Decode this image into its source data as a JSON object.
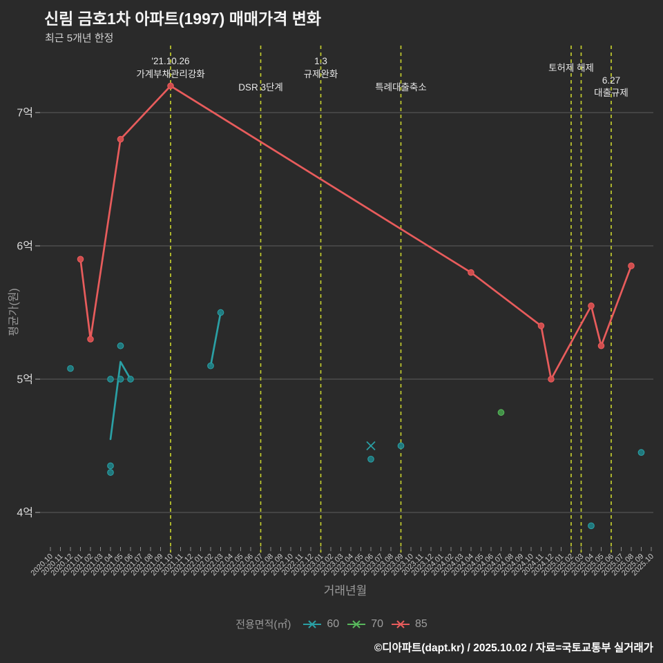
{
  "header": {
    "title": "신림 금호1차 아파트(1997) 매매가격 변화",
    "subtitle": "최근 5개년 한정"
  },
  "footer": {
    "credit": "©디아파트(dapt.kr) / 2025.10.02 / 자료=국토교통부 실거래가"
  },
  "legend": {
    "title": "전용면적(㎡)",
    "items": [
      {
        "label": "60",
        "color": "#2aa0a5"
      },
      {
        "label": "70",
        "color": "#58b85c"
      },
      {
        "label": "85",
        "color": "#e85c5c"
      }
    ]
  },
  "chart_data": {
    "type": "line+scatter",
    "title": "신림 금호1차 아파트(1997) 매매가격 변화",
    "subtitle": "최근 5개년 한정",
    "xlabel": "거래년월",
    "ylabel": "평균가(원)",
    "unit": "억원",
    "grid": true,
    "ylim": [
      3.75,
      7.45
    ],
    "y_ticks": [
      {
        "label": "4억",
        "value": 4
      },
      {
        "label": "5억",
        "value": 5
      },
      {
        "label": "6억",
        "value": 6
      },
      {
        "label": "7억",
        "value": 7
      }
    ],
    "x_categories": [
      "2020.10",
      "2020.11",
      "2020.12",
      "2021.01",
      "2021.02",
      "2021.03",
      "2021.04",
      "2021.05",
      "2021.06",
      "2021.07",
      "2021.08",
      "2021.09",
      "2021.10",
      "2021.11",
      "2021.12",
      "2022.01",
      "2022.02",
      "2022.03",
      "2022.04",
      "2022.05",
      "2022.06",
      "2022.07",
      "2022.08",
      "2022.09",
      "2022.10",
      "2022.11",
      "2022.12",
      "2023.01",
      "2023.02",
      "2023.03",
      "2023.04",
      "2023.05",
      "2023.06",
      "2023.07",
      "2023.08",
      "2023.09",
      "2023.10",
      "2023.11",
      "2023.12",
      "2024.01",
      "2024.02",
      "2024.03",
      "2024.04",
      "2024.05",
      "2024.06",
      "2024.07",
      "2024.08",
      "2024.09",
      "2024.10",
      "2024.11",
      "2024.12",
      "2025.01",
      "2025.02",
      "2025.03",
      "2025.04",
      "2025.05",
      "2025.06",
      "2025.07",
      "2025.08",
      "2025.09",
      "2025.10"
    ],
    "event_line_color": "#c2cc2e",
    "events": [
      {
        "month": "2021.10",
        "lines": [
          "'21.10.26",
          "가계부채관리강화"
        ],
        "row": "top"
      },
      {
        "month": "2022.07",
        "lines": [
          "DSR 3단계"
        ],
        "row": "low"
      },
      {
        "month": "2023.01",
        "lines": [
          "1.3",
          "규제완화"
        ],
        "row": "top"
      },
      {
        "month": "2023.09",
        "lines": [
          "특례대출축소"
        ],
        "row": "low"
      },
      {
        "month": "2025.02",
        "lines": [
          "토허제 해제"
        ],
        "row": "mid"
      },
      {
        "month": "2025.03",
        "lines": [],
        "row": "mid"
      },
      {
        "month": "2025.06",
        "lines": [
          "6.27",
          "대출규제"
        ],
        "row": "mid2"
      }
    ],
    "series": [
      {
        "name": "60",
        "color": "#2aa0a5",
        "dot_fill": "#1f7f85",
        "marker_on_line": false,
        "lines": [
          [
            {
              "month": "2021.04",
              "value": 4.55
            },
            {
              "month": "2021.05",
              "value": 5.13
            },
            {
              "month": "2021.06",
              "value": 5.0
            }
          ],
          [
            {
              "month": "2022.02",
              "value": 5.1
            },
            {
              "month": "2022.03",
              "value": 5.5
            }
          ]
        ],
        "points": [
          {
            "month": "2020.12",
            "value": 5.08
          },
          {
            "month": "2021.04",
            "value": 5.0
          },
          {
            "month": "2021.04",
            "value": 4.35
          },
          {
            "month": "2021.04",
            "value": 4.3
          },
          {
            "month": "2021.05",
            "value": 5.25
          },
          {
            "month": "2021.05",
            "value": 5.0
          },
          {
            "month": "2021.06",
            "value": 5.0
          },
          {
            "month": "2022.02",
            "value": 5.1
          },
          {
            "month": "2022.03",
            "value": 5.5
          },
          {
            "month": "2023.06",
            "value": 4.4
          },
          {
            "month": "2023.09",
            "value": 4.5
          },
          {
            "month": "2025.04",
            "value": 3.9
          },
          {
            "month": "2025.09",
            "value": 4.45
          }
        ],
        "x_markers": [
          {
            "month": "2023.06",
            "value": 4.5
          }
        ]
      },
      {
        "name": "70",
        "color": "#58b85c",
        "dot_fill": "#459b4a",
        "marker_on_line": false,
        "lines": [],
        "points": [
          {
            "month": "2024.07",
            "value": 4.75
          }
        ],
        "x_markers": []
      },
      {
        "name": "85",
        "color": "#e85c5c",
        "dot_fill": "#cf4d4d",
        "marker_on_line": true,
        "lines": [
          [
            {
              "month": "2021.01",
              "value": 5.9
            },
            {
              "month": "2021.02",
              "value": 5.3
            },
            {
              "month": "2021.05",
              "value": 6.8
            },
            {
              "month": "2021.10",
              "value": 7.2
            },
            {
              "month": "2024.04",
              "value": 5.8
            },
            {
              "month": "2024.11",
              "value": 5.4
            },
            {
              "month": "2024.12",
              "value": 5.0
            },
            {
              "month": "2025.04",
              "value": 5.55
            },
            {
              "month": "2025.05",
              "value": 5.25
            },
            {
              "month": "2025.08",
              "value": 5.85
            }
          ]
        ],
        "points": [],
        "x_markers": []
      }
    ]
  }
}
